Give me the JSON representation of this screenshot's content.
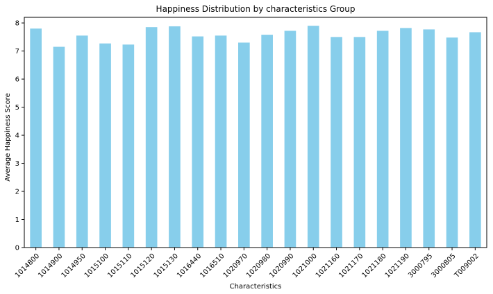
{
  "chart_data": {
    "type": "bar",
    "title": "Happiness Distribution by characteristics Group",
    "xlabel": "Characteristics",
    "ylabel": "Average Happiness Score",
    "categories": [
      "1014800",
      "1014900",
      "1014950",
      "1015100",
      "1015110",
      "1015120",
      "1015130",
      "1016440",
      "1016510",
      "1020970",
      "1020980",
      "1020990",
      "1021000",
      "1021160",
      "1021170",
      "1021180",
      "1021190",
      "3000795",
      "3000805",
      "T009002"
    ],
    "values": [
      7.8,
      7.15,
      7.55,
      7.27,
      7.23,
      7.85,
      7.88,
      7.52,
      7.55,
      7.3,
      7.58,
      7.72,
      7.9,
      7.5,
      7.5,
      7.72,
      7.82,
      7.77,
      7.48,
      7.67
    ],
    "ylim": [
      0,
      8.2
    ],
    "yticks": [
      0,
      1,
      2,
      3,
      4,
      5,
      6,
      7,
      8
    ],
    "bar_color": "#87ceeb",
    "grid": false,
    "legend": "none"
  }
}
